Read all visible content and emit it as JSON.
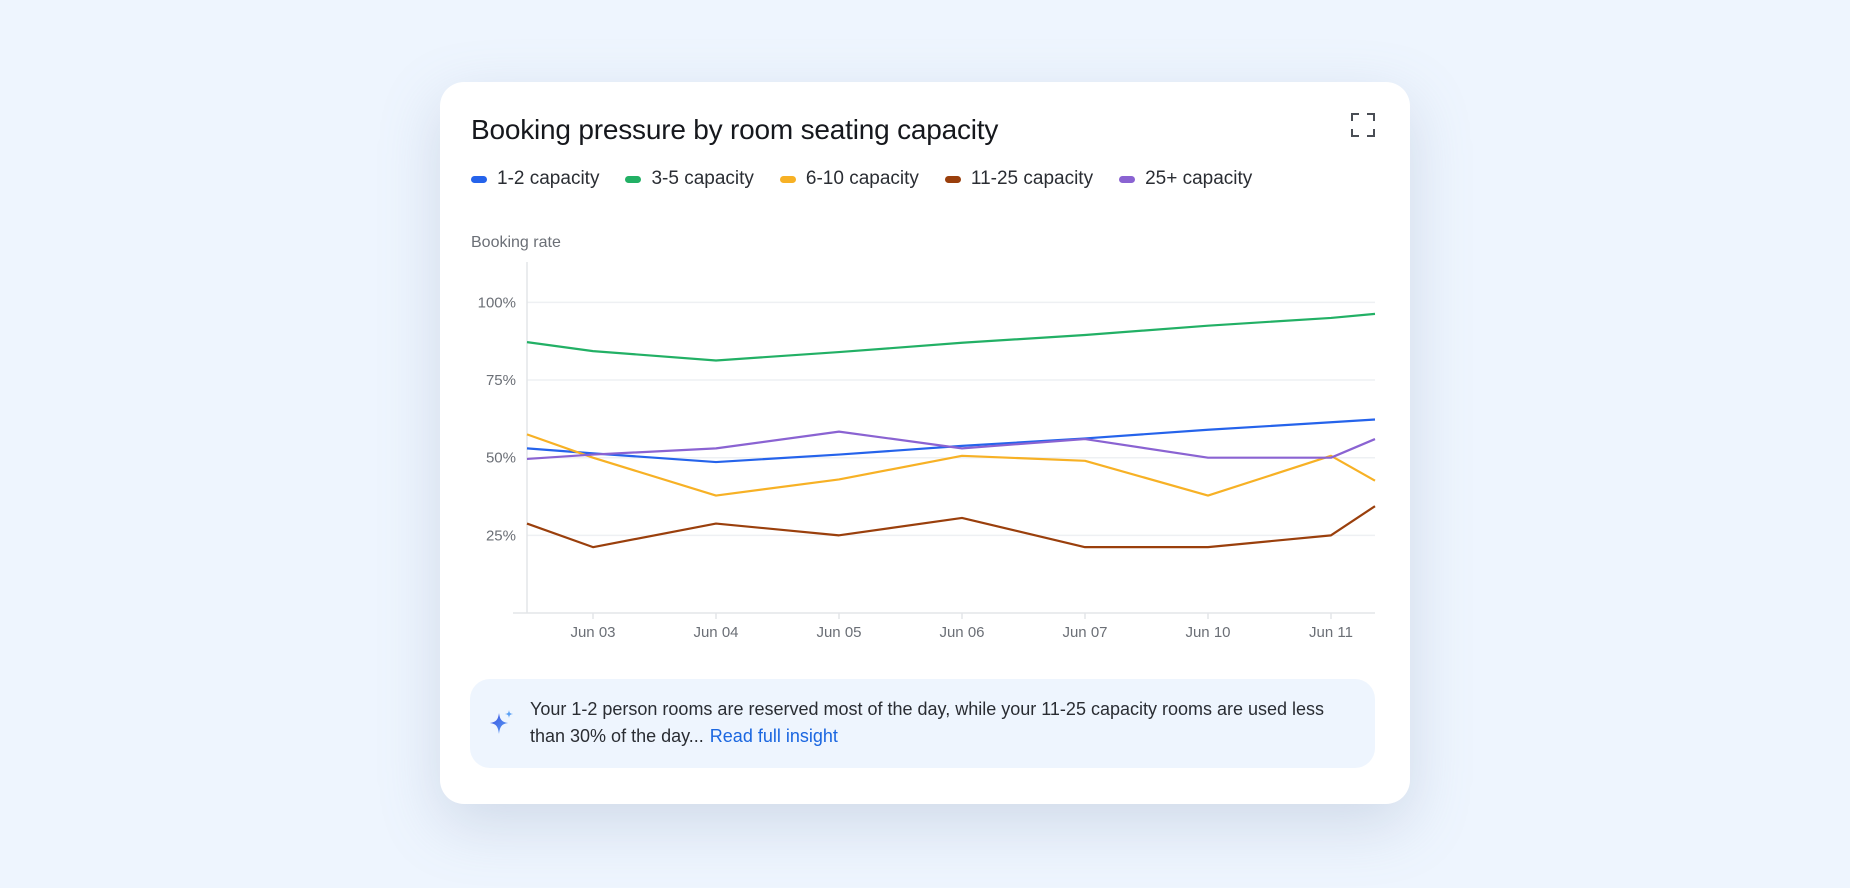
{
  "card": {
    "title": "Booking pressure by room seating capacity",
    "expand_icon": "expand-icon"
  },
  "insight": {
    "icon": "sparkle-icon",
    "text": "Your 1-2 person rooms are reserved most of the day, while your 11-25 capacity rooms are used less than 30% of the day...",
    "link": "Read full insight"
  },
  "chart_data": {
    "type": "line",
    "title": "Booking pressure by room seating capacity",
    "ylabel": "Booking rate",
    "xlabel": "",
    "categories": [
      "Jun 03",
      "Jun 04",
      "Jun 05",
      "Jun 06",
      "Jun 07",
      "Jun 10",
      "Jun 11"
    ],
    "yticks": [
      "25%",
      "50%",
      "75%",
      "100%"
    ],
    "ytick_values": [
      25,
      50,
      75,
      100
    ],
    "ylim": [
      0,
      113
    ],
    "grid": true,
    "legend": "top",
    "note": "",
    "series": [
      {
        "name": "1-2 capacity",
        "color": "#2563eb",
        "edge_start": 53,
        "values": [
          51.4,
          48.6,
          51,
          53.8,
          56.2,
          59,
          61.4
        ],
        "edge_end": 62.3
      },
      {
        "name": "3-5 capacity",
        "color": "#22b065",
        "edge_start": 87.2,
        "values": [
          84.3,
          81.3,
          84,
          87,
          89.5,
          92.5,
          95
        ],
        "edge_end": 96.3
      },
      {
        "name": "6-10 capacity",
        "color": "#f7b125",
        "edge_start": 57.5,
        "values": [
          50,
          37.8,
          43,
          50.6,
          49,
          37.8,
          50.6
        ],
        "edge_end": 42.6
      },
      {
        "name": "11-25 capacity",
        "color": "#9a3f0c",
        "edge_start": 28.8,
        "values": [
          21.2,
          28.8,
          25,
          30.6,
          21.2,
          21.2,
          25
        ],
        "edge_end": 34.4
      },
      {
        "name": "25+ capacity",
        "color": "#8a63d2",
        "edge_start": 49.6,
        "values": [
          51,
          53,
          58.4,
          53,
          56,
          50,
          50
        ],
        "edge_end": 56
      }
    ]
  }
}
